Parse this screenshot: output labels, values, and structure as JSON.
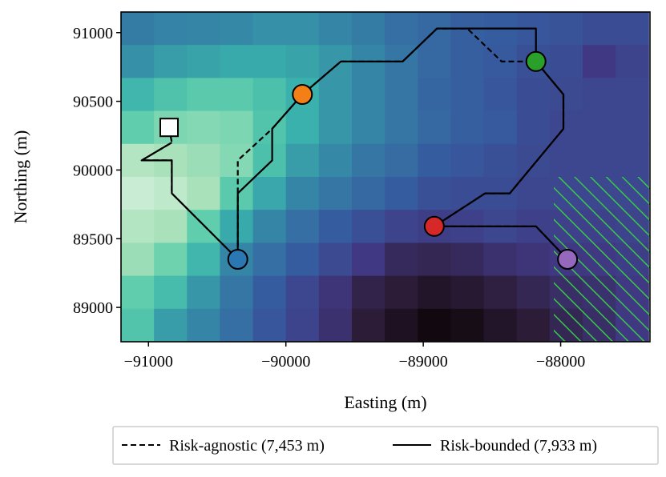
{
  "chart_data": {
    "type": "heatmap",
    "title": "",
    "xlabel": "Easting (m)",
    "ylabel": "Northing (m)",
    "xlim": [
      -91200,
      -87350
    ],
    "ylim": [
      88750,
      91150
    ],
    "xticks": [
      -91000,
      -90000,
      -89000,
      -88000
    ],
    "xtick_labels": [
      "−91000",
      "−90000",
      "−89000",
      "−88000"
    ],
    "yticks": [
      89000,
      89500,
      90000,
      90500,
      91000
    ],
    "ytick_labels": [
      "89000",
      "89500",
      "90000",
      "90500",
      "91000"
    ],
    "grid": false,
    "heatmap": {
      "x0": -91200,
      "y0": 88750,
      "cell_width": 240,
      "cell_height": 240,
      "cols": 16,
      "rows": 10,
      "colormap": "mako",
      "values_top_to_bottom": [
        [
          0.52,
          0.54,
          0.55,
          0.56,
          0.58,
          0.58,
          0.55,
          0.52,
          0.48,
          0.46,
          0.43,
          0.42,
          0.4,
          0.39,
          0.37,
          0.37
        ],
        [
          0.58,
          0.62,
          0.64,
          0.66,
          0.66,
          0.64,
          0.6,
          0.55,
          0.5,
          0.46,
          0.43,
          0.41,
          0.38,
          0.37,
          0.3,
          0.34
        ],
        [
          0.7,
          0.75,
          0.78,
          0.78,
          0.74,
          0.68,
          0.6,
          0.55,
          0.5,
          0.45,
          0.43,
          0.4,
          0.37,
          0.36,
          0.35,
          0.35
        ],
        [
          0.8,
          0.84,
          0.85,
          0.84,
          0.76,
          0.68,
          0.6,
          0.55,
          0.5,
          0.46,
          0.43,
          0.41,
          0.37,
          0.35,
          0.35,
          0.35
        ],
        [
          0.92,
          0.9,
          0.88,
          0.85,
          0.74,
          0.62,
          0.56,
          0.5,
          0.47,
          0.42,
          0.4,
          0.38,
          0.36,
          0.35,
          0.35,
          0.35
        ],
        [
          0.96,
          0.94,
          0.9,
          0.78,
          0.65,
          0.55,
          0.5,
          0.46,
          0.42,
          0.38,
          0.37,
          0.37,
          0.35,
          0.35,
          0.35,
          0.35
        ],
        [
          0.92,
          0.9,
          0.8,
          0.66,
          0.55,
          0.48,
          0.42,
          0.38,
          0.34,
          0.32,
          0.33,
          0.35,
          0.33,
          0.33,
          0.33,
          0.34
        ],
        [
          0.88,
          0.82,
          0.7,
          0.55,
          0.48,
          0.42,
          0.36,
          0.3,
          0.22,
          0.2,
          0.22,
          0.26,
          0.28,
          0.3,
          0.3,
          0.32
        ],
        [
          0.8,
          0.72,
          0.6,
          0.5,
          0.42,
          0.35,
          0.28,
          0.18,
          0.14,
          0.1,
          0.12,
          0.16,
          0.2,
          0.24,
          0.26,
          0.3
        ],
        [
          0.76,
          0.62,
          0.55,
          0.48,
          0.4,
          0.34,
          0.26,
          0.14,
          0.08,
          0.03,
          0.05,
          0.1,
          0.14,
          0.2,
          0.24,
          0.3
        ]
      ]
    },
    "hatched_region": {
      "x": [
        -88050,
        -87350
      ],
      "y": [
        88750,
        89950
      ],
      "color": "#37c84a"
    },
    "series": [
      {
        "name": "Risk-agnostic (7,453 m)",
        "style": "dashed",
        "x": [
          -90850,
          -90850,
          -90850,
          -90830,
          -91050,
          -90830,
          -90830,
          -90350,
          -90350,
          -90350,
          -90350,
          -90350,
          -90350,
          -90100,
          -89880,
          -89880,
          -89880,
          -89880,
          -89600,
          -89600,
          -89600,
          -89150,
          -88900,
          -88900,
          -88680,
          -88430,
          -88180,
          -88180,
          -88180,
          -87980,
          -87980,
          -87980,
          -87980,
          -87980,
          -88370,
          -88550,
          -88550,
          -88920,
          -88920,
          -88920,
          -88920,
          -88920,
          -88180,
          -87950
        ],
        "y": [
          90310,
          90310,
          90310,
          90200,
          90070,
          90070,
          89830,
          89350,
          89350,
          89350,
          89350,
          89350,
          90070,
          90300,
          90550,
          90550,
          90550,
          90550,
          90790,
          90790,
          90790,
          90790,
          91030,
          91030,
          91030,
          90790,
          90790,
          90790,
          90790,
          90550,
          90550,
          90550,
          90300,
          90300,
          89830,
          89830,
          89830,
          89590,
          89590,
          89590,
          89590,
          89590,
          89590,
          89350
        ]
      },
      {
        "name": "Risk-bounded (7,933 m)",
        "style": "solid",
        "x": [
          -90830,
          -91050,
          -90830,
          -90830,
          -90350,
          -90350,
          -90100,
          -90100,
          -89880,
          -89600,
          -89150,
          -88900,
          -88180,
          -88180,
          -87980,
          -87980,
          -88370,
          -88550,
          -88920,
          -88180,
          -87950
        ],
        "y": [
          90200,
          90070,
          90070,
          89830,
          89350,
          89830,
          90070,
          90300,
          90550,
          90790,
          90790,
          91030,
          91030,
          90790,
          90550,
          90300,
          89830,
          89830,
          89590,
          89590,
          89350
        ]
      }
    ],
    "markers": [
      {
        "name": "start",
        "shape": "square",
        "x": -90850,
        "y": 90310,
        "color": "#ffffff"
      },
      {
        "name": "blue-waypoint",
        "shape": "circle",
        "x": -90350,
        "y": 89350,
        "color": "#2b77b3"
      },
      {
        "name": "orange-waypoint",
        "shape": "circle",
        "x": -89880,
        "y": 90550,
        "color": "#f47f17"
      },
      {
        "name": "green-waypoint",
        "shape": "circle",
        "x": -88180,
        "y": 90790,
        "color": "#2aa02b"
      },
      {
        "name": "red-waypoint",
        "shape": "circle",
        "x": -88920,
        "y": 89590,
        "color": "#d62829"
      },
      {
        "name": "purple-waypoint",
        "shape": "circle",
        "x": -87950,
        "y": 89350,
        "color": "#9568bd"
      }
    ],
    "legend": {
      "placement": "bottom-center",
      "entries": [
        {
          "label": "Risk-agnostic (7,453 m)",
          "style": "dashed"
        },
        {
          "label": "Risk-bounded (7,933 m)",
          "style": "solid"
        }
      ]
    }
  }
}
